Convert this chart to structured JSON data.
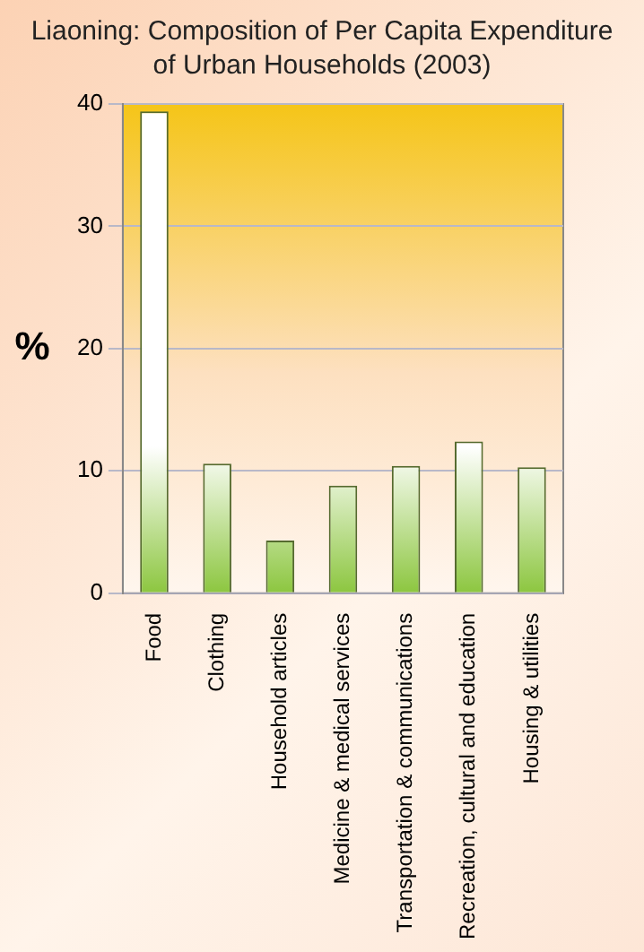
{
  "chart_data": {
    "type": "bar",
    "title": "Liaoning: Composition of Per Capita Expenditure of Urban Households (2003)",
    "ylabel": "%",
    "categories": [
      "Food",
      "Clothing",
      "Household articles",
      "Medicine & medical services",
      "Transportation & communications",
      "Recreation, cultural and education",
      "Housing & utilities"
    ],
    "values": [
      39.4,
      10.6,
      4.3,
      8.8,
      10.4,
      12.4,
      10.3
    ],
    "color": "#8cc63f",
    "ylim": [
      0,
      40
    ],
    "yticks": [
      0,
      10,
      20,
      30,
      40
    ],
    "grid": "y"
  }
}
